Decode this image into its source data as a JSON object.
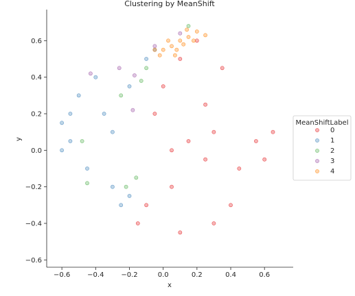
{
  "chart_data": {
    "type": "scatter",
    "title": "Clustering by MeanShift",
    "xlabel": "x",
    "ylabel": "y",
    "xlim": [
      -0.69,
      0.77
    ],
    "ylim": [
      -0.64,
      0.77
    ],
    "xticks": [
      -0.6,
      -0.4,
      -0.2,
      0.0,
      0.2,
      0.4,
      0.6
    ],
    "yticks": [
      -0.6,
      -0.4,
      -0.2,
      0.0,
      0.2,
      0.4,
      0.6
    ],
    "xtick_labels": [
      "−0.6",
      "−0.4",
      "−0.2",
      "0.0",
      "0.2",
      "0.4",
      "0.6"
    ],
    "ytick_labels": [
      "−0.6",
      "−0.4",
      "−0.2",
      "0.0",
      "0.2",
      "0.4",
      "0.6"
    ],
    "grid": false,
    "legend": {
      "title": "MeanShiftLabel",
      "placement": "right"
    },
    "series": [
      {
        "name": "0",
        "color": "#e41a1c",
        "points": [
          [
            0.15,
            0.05
          ],
          [
            0.25,
            -0.05
          ],
          [
            0.05,
            0.0
          ],
          [
            -0.1,
            -0.3
          ],
          [
            0.3,
            0.1
          ],
          [
            0.45,
            -0.1
          ],
          [
            0.0,
            0.35
          ],
          [
            0.2,
            0.6
          ],
          [
            -0.15,
            -0.4
          ],
          [
            0.55,
            0.05
          ],
          [
            0.1,
            -0.45
          ],
          [
            0.35,
            0.45
          ],
          [
            -0.05,
            0.2
          ],
          [
            0.6,
            -0.05
          ],
          [
            0.4,
            -0.3
          ],
          [
            0.25,
            0.25
          ],
          [
            0.05,
            -0.2
          ],
          [
            0.65,
            0.1
          ],
          [
            0.3,
            -0.4
          ],
          [
            0.1,
            0.5
          ]
        ]
      },
      {
        "name": "1",
        "color": "#377eb8",
        "points": [
          [
            -0.6,
            0.15
          ],
          [
            -0.55,
            0.05
          ],
          [
            -0.5,
            0.3
          ],
          [
            -0.4,
            0.4
          ],
          [
            -0.3,
            -0.2
          ],
          [
            -0.45,
            -0.1
          ],
          [
            -0.2,
            0.35
          ],
          [
            -0.1,
            0.5
          ],
          [
            -0.25,
            -0.3
          ],
          [
            -0.35,
            0.2
          ],
          [
            -0.05,
            0.55
          ],
          [
            -0.6,
            0.0
          ],
          [
            -0.55,
            0.2
          ],
          [
            -0.3,
            0.1
          ],
          [
            -0.2,
            -0.25
          ]
        ]
      },
      {
        "name": "2",
        "color": "#4daf4a",
        "points": [
          [
            -0.1,
            0.45
          ],
          [
            -0.25,
            0.3
          ],
          [
            0.15,
            0.68
          ],
          [
            -0.48,
            0.05
          ],
          [
            -0.45,
            -0.18
          ],
          [
            -0.16,
            -0.15
          ],
          [
            -0.22,
            -0.2
          ],
          [
            -0.13,
            0.38
          ]
        ]
      },
      {
        "name": "3",
        "color": "#984ea3",
        "points": [
          [
            -0.43,
            0.42
          ],
          [
            -0.26,
            0.45
          ],
          [
            -0.17,
            0.41
          ],
          [
            -0.05,
            0.57
          ],
          [
            0.1,
            0.64
          ],
          [
            -0.18,
            0.22
          ]
        ]
      },
      {
        "name": "4",
        "color": "#ff7f00",
        "points": [
          [
            0.05,
            0.57
          ],
          [
            0.1,
            0.6
          ],
          [
            0.15,
            0.62
          ],
          [
            0.2,
            0.65
          ],
          [
            0.08,
            0.55
          ],
          [
            0.12,
            0.58
          ],
          [
            0.0,
            0.55
          ],
          [
            0.18,
            0.6
          ],
          [
            0.25,
            0.63
          ],
          [
            0.03,
            0.6
          ],
          [
            -0.02,
            0.52
          ],
          [
            -0.05,
            0.55
          ],
          [
            0.14,
            0.66
          ],
          [
            0.07,
            0.52
          ]
        ]
      }
    ]
  }
}
